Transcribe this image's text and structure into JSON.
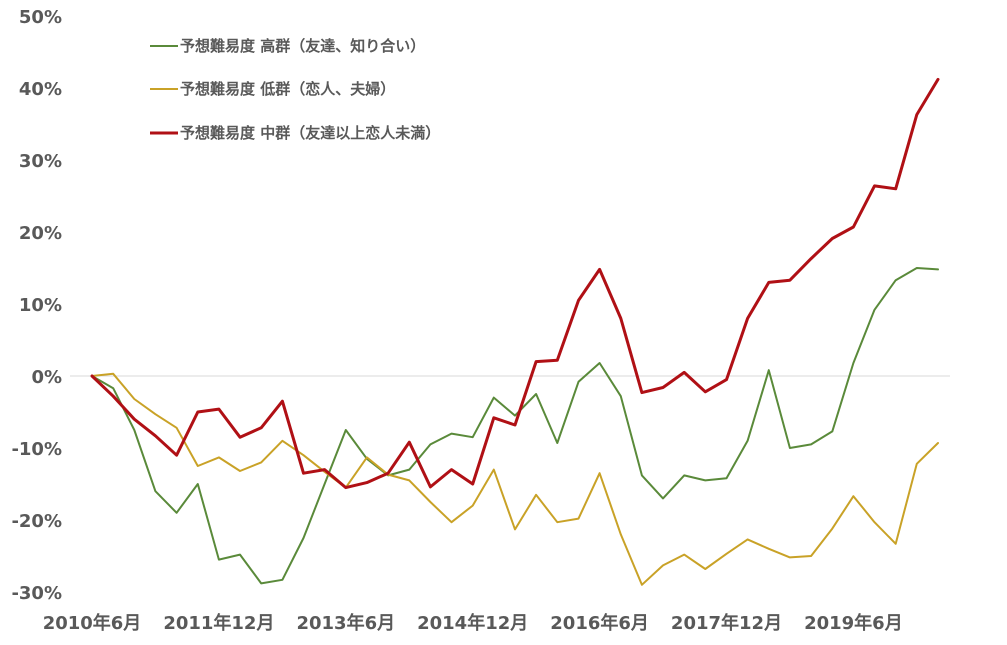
{
  "chart_data": {
    "type": "line",
    "title": "",
    "xlabel": "",
    "ylabel": "",
    "ylim": [
      -30,
      50
    ],
    "y_ticks": [
      50,
      40,
      30,
      20,
      10,
      0,
      -10,
      -20,
      -30
    ],
    "y_tick_labels": [
      "50%",
      "40%",
      "30%",
      "20%",
      "10%",
      "0%",
      "-10%",
      "-20%",
      "-30%"
    ],
    "x_tick_labels": [
      {
        "label": "2010年6月",
        "index": 0
      },
      {
        "label": "2011年12月",
        "index": 6
      },
      {
        "label": "2013年6月",
        "index": 12
      },
      {
        "label": "2014年12月",
        "index": 18
      },
      {
        "label": "2016年6月",
        "index": 24
      },
      {
        "label": "2017年12月",
        "index": 30
      },
      {
        "label": "2019年6月",
        "index": 36
      }
    ],
    "x_count": 41,
    "zero_line": true,
    "grid": false,
    "legend_position": "top-left",
    "series": [
      {
        "name": "予想難易度 高群（友達、知り合い）",
        "color": "#5a8a3a",
        "width": 2,
        "values": [
          0,
          -1.7,
          -7.5,
          -16,
          -19,
          -15,
          -25.5,
          -24.8,
          -28.8,
          -28.3,
          -22.5,
          -15,
          -7.5,
          -11.5,
          -13.8,
          -13,
          -9.5,
          -8,
          -8.5,
          -3,
          -5.5,
          -2.5,
          -9.3,
          -0.8,
          1.8,
          -2.8,
          -13.8,
          -17,
          -13.8,
          -14.5,
          -14.2,
          -9,
          0.8,
          -10,
          -9.5,
          -7.7,
          1.8,
          9.2,
          13.3,
          15,
          14.8
        ]
      },
      {
        "name": "予想難易度 低群（恋人、夫婦）",
        "color": "#c9a227",
        "width": 2,
        "values": [
          0,
          0.3,
          -3.2,
          -5.3,
          -7.2,
          -12.5,
          -11.3,
          -13.2,
          -12,
          -9,
          -11,
          -13.3,
          -15.5,
          -11.3,
          -13.7,
          -14.5,
          -17.5,
          -20.3,
          -18,
          -13,
          -21.3,
          -16.5,
          -20.3,
          -19.8,
          -13.5,
          -22,
          -29,
          -26.3,
          -24.8,
          -26.8,
          -24.7,
          -22.7,
          -24,
          -25.2,
          -25,
          -21.2,
          -16.7,
          -20.3,
          -23.3,
          -12.2,
          -9.3
        ]
      },
      {
        "name": "予想難易度 中群（友達以上恋人未満）",
        "color": "#b01015",
        "width": 3,
        "values": [
          0,
          -2.8,
          -6,
          -8.3,
          -11,
          -5,
          -4.6,
          -8.5,
          -7.2,
          -3.5,
          -13.5,
          -13,
          -15.5,
          -14.8,
          -13.5,
          -9.2,
          -15.4,
          -13,
          -15,
          -5.8,
          -6.8,
          2,
          2.2,
          10.5,
          14.8,
          8,
          -2.3,
          -1.6,
          0.5,
          -2.2,
          -0.5,
          8,
          13,
          13.3,
          16.3,
          19.1,
          20.7,
          26.4,
          26,
          36.3,
          41.2
        ]
      }
    ]
  }
}
